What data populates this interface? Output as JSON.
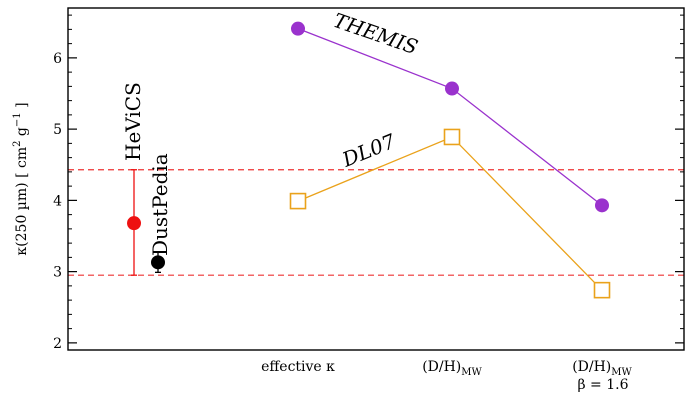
{
  "chart_data": {
    "type": "scatter",
    "ylabel": "κ(250 µm) [ cm² g⁻¹ ]",
    "ylabel_parts": {
      "main": "κ(250 µm)  [ cm",
      "exp1": "2",
      "mid": " g",
      "exp2": "−1",
      "end": " ]"
    },
    "ylim": [
      1.9,
      6.7
    ],
    "yticks": [
      2,
      3,
      4,
      5,
      6
    ],
    "ytick_labels": [
      "2",
      "3",
      "4",
      "5",
      "6"
    ],
    "grid": false,
    "categories": [
      {
        "main": "effective κ",
        "sub": "",
        "line2": ""
      },
      {
        "main": "(D/H)",
        "sub": "MW",
        "line2": ""
      },
      {
        "main": "(D/H)",
        "sub": "MW",
        "line2": "β = 1.6"
      }
    ],
    "series": [
      {
        "name": "THEMIS",
        "color": "#9a32cd",
        "marker": "circle",
        "values": [
          6.41,
          5.57,
          3.93
        ]
      },
      {
        "name": "DL07",
        "color": "#eaa21b",
        "marker": "square",
        "values": [
          3.99,
          4.89,
          2.74
        ]
      }
    ],
    "observations": [
      {
        "name": "HeViCS",
        "color": "#ee1111",
        "value": 3.68,
        "err_low": 0.73,
        "err_high": 0.75
      },
      {
        "name": "DustPedia",
        "color": "#000000",
        "value": 3.13,
        "err_low": 0.14,
        "err_high": 0.15
      }
    ],
    "reference_lines": [
      {
        "y": 4.43,
        "color": "#ee3333",
        "style": "dashed"
      },
      {
        "y": 2.95,
        "color": "#ee3333",
        "style": "dashed"
      }
    ]
  }
}
